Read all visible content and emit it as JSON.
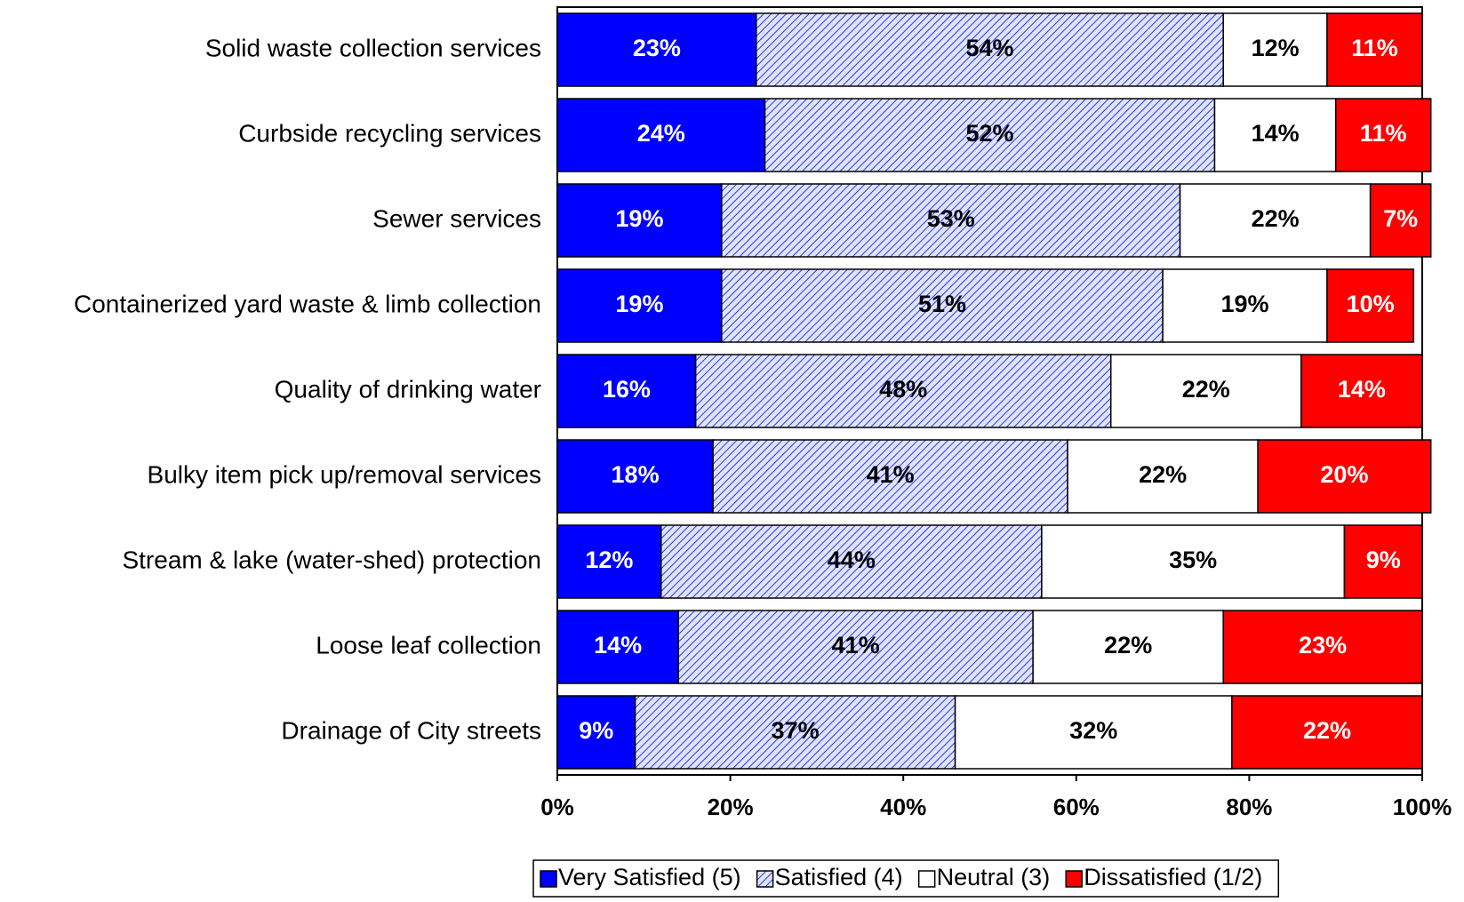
{
  "chart_data": {
    "type": "stacked-bar-horizontal",
    "categories": [
      "Solid waste collection services",
      "Curbside recycling services",
      "Sewer services",
      "Containerized yard waste & limb collection",
      "Quality of drinking water",
      "Bulky item pick up/removal services",
      "Stream & lake (water-shed) protection",
      "Loose leaf collection",
      "Drainage of City streets"
    ],
    "series": [
      {
        "name": "Very Satisfied (5)",
        "color": "#0000ff",
        "values": [
          23,
          24,
          19,
          19,
          16,
          18,
          12,
          14,
          9
        ],
        "value_labels": [
          "23%",
          "24%",
          "19%",
          "19%",
          "16%",
          "18%",
          "12%",
          "14%",
          "9%"
        ]
      },
      {
        "name": "Satisfied (4)",
        "color": "hatch",
        "values": [
          54,
          52,
          53,
          51,
          48,
          41,
          44,
          41,
          37
        ],
        "value_labels": [
          "54%",
          "52%",
          "53%",
          "51%",
          "48%",
          "41%",
          "44%",
          "41%",
          "37%"
        ]
      },
      {
        "name": "Neutral (3)",
        "color": "#ffffff",
        "values": [
          12,
          14,
          22,
          19,
          22,
          22,
          35,
          22,
          32
        ],
        "value_labels": [
          "12%",
          "14%",
          "22%",
          "19%",
          "22%",
          "22%",
          "35%",
          "22%",
          "32%"
        ]
      },
      {
        "name": "Dissatisfied (1/2)",
        "color": "#ff0000",
        "values": [
          11,
          11,
          7,
          10,
          14,
          20,
          9,
          23,
          22
        ],
        "value_labels": [
          "11%",
          "11%",
          "7%",
          "10%",
          "14%",
          "20%",
          "9%",
          "23%",
          "22%"
        ]
      }
    ],
    "xlim": [
      0,
      100
    ],
    "xticks": [
      {
        "value": 0,
        "label": "0%"
      },
      {
        "value": 20,
        "label": "20%"
      },
      {
        "value": 40,
        "label": "40%"
      },
      {
        "value": 60,
        "label": "60%"
      },
      {
        "value": 80,
        "label": "80%"
      },
      {
        "value": 100,
        "label": "100%"
      }
    ],
    "legend": "bottom"
  }
}
